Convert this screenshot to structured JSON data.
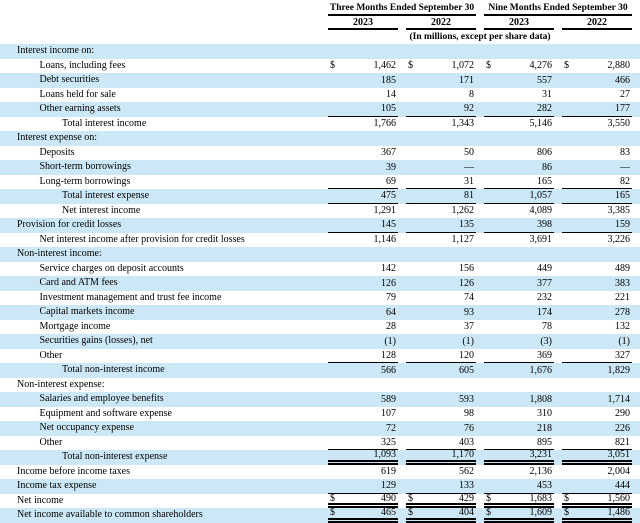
{
  "header": {
    "col_groups": [
      {
        "label": "Three Months Ended September 30"
      },
      {
        "label": "Nine Months Ended September 30"
      }
    ],
    "years": [
      "2023",
      "2022",
      "2023",
      "2022"
    ],
    "units_note": "(In millions, except per share data)"
  },
  "table": {
    "currency_symbol": "$",
    "rows": [
      {
        "label": "Interest income on:",
        "indent": 0,
        "values": [
          "",
          "",
          "",
          ""
        ]
      },
      {
        "label": "Loans, including fees",
        "indent": 1,
        "dollar": true,
        "values": [
          "1,462",
          "1,072",
          "4,276",
          "2,880"
        ]
      },
      {
        "label": "Debt securities",
        "indent": 1,
        "values": [
          "185",
          "171",
          "557",
          "466"
        ]
      },
      {
        "label": "Loans held for sale",
        "indent": 1,
        "values": [
          "14",
          "8",
          "31",
          "27"
        ]
      },
      {
        "label": "Other earning assets",
        "indent": 1,
        "rule": "single",
        "values": [
          "105",
          "92",
          "282",
          "177"
        ]
      },
      {
        "label": "Total interest income",
        "indent": 2,
        "values": [
          "1,766",
          "1,343",
          "5,146",
          "3,550"
        ]
      },
      {
        "label": "Interest expense on:",
        "indent": 0,
        "values": [
          "",
          "",
          "",
          ""
        ]
      },
      {
        "label": "Deposits",
        "indent": 1,
        "values": [
          "367",
          "50",
          "806",
          "83"
        ]
      },
      {
        "label": "Short-term borrowings",
        "indent": 1,
        "values": [
          "39",
          "—",
          "86",
          "—"
        ]
      },
      {
        "label": "Long-term borrowings",
        "indent": 1,
        "rule": "single",
        "values": [
          "69",
          "31",
          "165",
          "82"
        ]
      },
      {
        "label": "Total interest expense",
        "indent": 2,
        "rule": "single",
        "values": [
          "475",
          "81",
          "1,057",
          "165"
        ]
      },
      {
        "label": "Net interest income",
        "indent": 2,
        "values": [
          "1,291",
          "1,262",
          "4,089",
          "3,385"
        ]
      },
      {
        "label": "Provision for credit losses",
        "indent": 0,
        "rule": "single",
        "values": [
          "145",
          "135",
          "398",
          "159"
        ]
      },
      {
        "label": "Net interest income after provision for credit losses",
        "indent": 1,
        "values": [
          "1,146",
          "1,127",
          "3,691",
          "3,226"
        ]
      },
      {
        "label": "Non-interest income:",
        "indent": 0,
        "values": [
          "",
          "",
          "",
          ""
        ]
      },
      {
        "label": "Service charges on deposit accounts",
        "indent": 1,
        "values": [
          "142",
          "156",
          "449",
          "489"
        ]
      },
      {
        "label": "Card and ATM fees",
        "indent": 1,
        "values": [
          "126",
          "126",
          "377",
          "383"
        ]
      },
      {
        "label": "Investment management and trust fee income",
        "indent": 1,
        "values": [
          "79",
          "74",
          "232",
          "221"
        ]
      },
      {
        "label": "Capital markets income",
        "indent": 1,
        "values": [
          "64",
          "93",
          "174",
          "278"
        ]
      },
      {
        "label": "Mortgage income",
        "indent": 1,
        "values": [
          "28",
          "37",
          "78",
          "132"
        ]
      },
      {
        "label": "Securities gains (losses), net",
        "indent": 1,
        "values": [
          "(1)",
          "(1)",
          "(3)",
          "(1)"
        ]
      },
      {
        "label": "Other",
        "indent": 1,
        "rule": "single",
        "values": [
          "128",
          "120",
          "369",
          "327"
        ]
      },
      {
        "label": "Total non-interest income",
        "indent": 2,
        "values": [
          "566",
          "605",
          "1,676",
          "1,829"
        ]
      },
      {
        "label": "Non-interest expense:",
        "indent": 0,
        "values": [
          "",
          "",
          "",
          ""
        ]
      },
      {
        "label": "Salaries and employee benefits",
        "indent": 1,
        "values": [
          "589",
          "593",
          "1,808",
          "1,714"
        ]
      },
      {
        "label": "Equipment and software expense",
        "indent": 1,
        "values": [
          "107",
          "98",
          "310",
          "290"
        ]
      },
      {
        "label": "Net occupancy expense",
        "indent": 1,
        "values": [
          "72",
          "76",
          "218",
          "226"
        ]
      },
      {
        "label": "Other",
        "indent": 1,
        "rule": "single",
        "values": [
          "325",
          "403",
          "895",
          "821"
        ]
      },
      {
        "label": "Total non-interest expense",
        "indent": 2,
        "rule": "double",
        "values": [
          "1,093",
          "1,170",
          "3,231",
          "3,051"
        ]
      },
      {
        "label": "Income before income taxes",
        "indent": 0,
        "values": [
          "619",
          "562",
          "2,136",
          "2,004"
        ]
      },
      {
        "label": "Income tax expense",
        "indent": 0,
        "rule": "single",
        "values": [
          "129",
          "133",
          "453",
          "444"
        ]
      },
      {
        "label": "Net income",
        "indent": 0,
        "dollar": true,
        "rule": "double",
        "values": [
          "490",
          "429",
          "1,683",
          "1,560"
        ]
      },
      {
        "label": "Net income available to common shareholders",
        "indent": 0,
        "dollar": true,
        "rule": "double",
        "values": [
          "465",
          "404",
          "1,609",
          "1,486"
        ]
      }
    ]
  },
  "colors": {
    "row_shade": "#cce8f6",
    "rule": "#000000"
  }
}
